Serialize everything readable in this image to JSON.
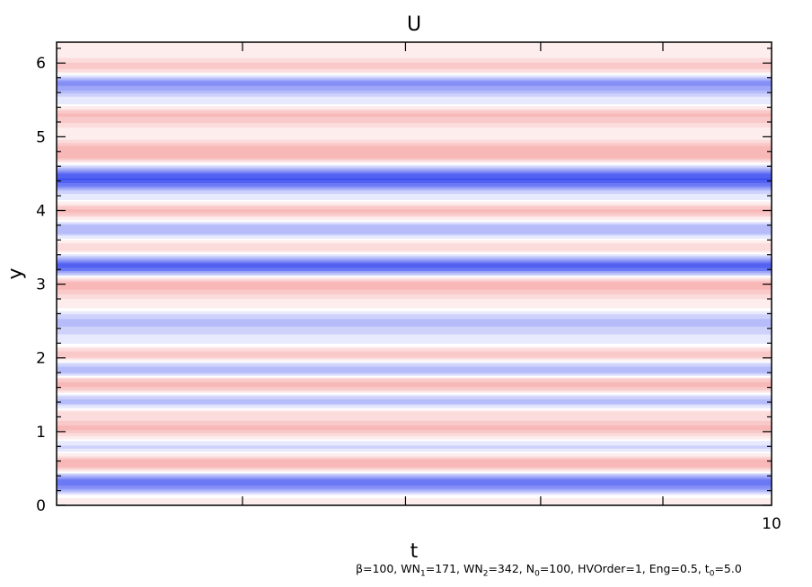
{
  "chart_data": {
    "type": "heatmap",
    "title": "U",
    "xlabel": "t",
    "ylabel": "y",
    "xlim": [
      0,
      10
    ],
    "ylim": [
      0,
      6.283
    ],
    "y_ticks": [
      "0",
      "1",
      "2",
      "3",
      "4",
      "5",
      "6"
    ],
    "x_ticks": [
      "10"
    ],
    "colormap": {
      "negative": "#3b4cf0",
      "zero": "#ffffff",
      "positive": "#f07070"
    },
    "bands": [
      {
        "y": 0.05,
        "v": 0.15
      },
      {
        "y": 0.32,
        "v": -0.75
      },
      {
        "y": 0.56,
        "v": 0.55
      },
      {
        "y": 0.8,
        "v": -0.2
      },
      {
        "y": 1.05,
        "v": 0.45
      },
      {
        "y": 1.23,
        "v": 0.25
      },
      {
        "y": 1.42,
        "v": -0.35
      },
      {
        "y": 1.65,
        "v": 0.5
      },
      {
        "y": 1.85,
        "v": -0.4
      },
      {
        "y": 2.05,
        "v": 0.4
      },
      {
        "y": 2.25,
        "v": -0.15
      },
      {
        "y": 2.5,
        "v": -0.35
      },
      {
        "y": 2.72,
        "v": 0.1
      },
      {
        "y": 3.0,
        "v": 0.5
      },
      {
        "y": 3.25,
        "v": -0.85
      },
      {
        "y": 3.5,
        "v": 0.3
      },
      {
        "y": 3.75,
        "v": -0.4
      },
      {
        "y": 4.0,
        "v": 0.45
      },
      {
        "y": 4.2,
        "v": -0.15
      },
      {
        "y": 4.43,
        "v": -0.95
      },
      {
        "y": 4.78,
        "v": 0.55
      },
      {
        "y": 5.05,
        "v": 0.1
      },
      {
        "y": 5.3,
        "v": 0.45
      },
      {
        "y": 5.5,
        "v": -0.15
      },
      {
        "y": 5.73,
        "v": -0.6
      },
      {
        "y": 5.95,
        "v": 0.35
      },
      {
        "y": 6.15,
        "v": 0.1
      }
    ]
  },
  "footer": {
    "beta": "β=100, ",
    "wn1_pre": "WN",
    "wn1_sub": "1",
    "wn1_post": "=171, ",
    "wn2_pre": "WN",
    "wn2_sub": "2",
    "wn2_post": "=342, ",
    "n0_pre": "N",
    "n0_sub": "0",
    "n0_post": "=100, HVOrder=1, Eng=0.5, ",
    "t0_pre": "t",
    "t0_sub": "0",
    "t0_post": "=5.0"
  }
}
